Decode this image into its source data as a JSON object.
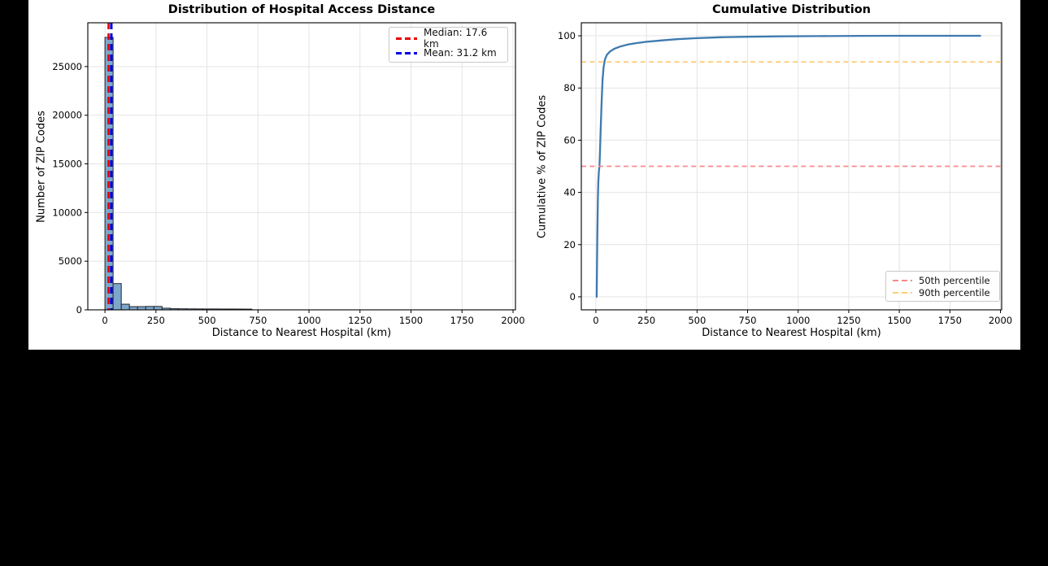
{
  "figure": {
    "background": "#ffffff",
    "page_background": "#000000",
    "axis_color": "#000000",
    "grid_color": "#e4e4e4"
  },
  "chart_data": [
    {
      "type": "bar",
      "title": "Distribution of Hospital Access Distance",
      "xlabel": "Distance to Nearest Hospital (km)",
      "ylabel": "Number of ZIP Codes",
      "xlim": [
        -84,
        2012
      ],
      "ylim": [
        0,
        29500
      ],
      "xticks": [
        0,
        250,
        500,
        750,
        1000,
        1250,
        1500,
        1750,
        2000
      ],
      "yticks": [
        0,
        5000,
        10000,
        15000,
        20000,
        25000
      ],
      "grid": true,
      "bin_start": 0,
      "bin_width": 40,
      "values": [
        28000,
        2700,
        580,
        330,
        330,
        350,
        350,
        170,
        120,
        110,
        100,
        95,
        90,
        90,
        85,
        85,
        80,
        75
      ],
      "bar_color": "#7da7ca",
      "bar_edge": "#26262e",
      "annotations": [
        {
          "id": "median-line",
          "label": "Median: 17.6 km",
          "value": 17.6,
          "orient": "v",
          "color": "#e60000",
          "width": 2.6
        },
        {
          "id": "mean-line",
          "label": "Mean: 31.2 km",
          "value": 31.2,
          "orient": "v",
          "color": "#0000dd",
          "width": 3.1
        }
      ],
      "legend_position": "top-right"
    },
    {
      "type": "line",
      "title": "Cumulative Distribution",
      "xlabel": "Distance to Nearest Hospital (km)",
      "ylabel": "Cumulative % of ZIP Codes",
      "xlim": [
        -72,
        2006
      ],
      "ylim": [
        -5,
        105
      ],
      "xticks": [
        0,
        250,
        500,
        750,
        1000,
        1250,
        1500,
        1750,
        2000
      ],
      "yticks": [
        0,
        20,
        40,
        60,
        80,
        100
      ],
      "grid": true,
      "line_color": "#3d7ab0",
      "line_width": 2.3,
      "points": [
        [
          4,
          0
        ],
        [
          6,
          15
        ],
        [
          8,
          28
        ],
        [
          10,
          38
        ],
        [
          12,
          44
        ],
        [
          15,
          48
        ],
        [
          17.6,
          50
        ],
        [
          20,
          55
        ],
        [
          24,
          65
        ],
        [
          28,
          74
        ],
        [
          33,
          83
        ],
        [
          38,
          88
        ],
        [
          45,
          91
        ],
        [
          55,
          92.8
        ],
        [
          70,
          94
        ],
        [
          90,
          95
        ],
        [
          120,
          95.9
        ],
        [
          160,
          96.7
        ],
        [
          200,
          97.2
        ],
        [
          250,
          97.7
        ],
        [
          320,
          98.2
        ],
        [
          400,
          98.7
        ],
        [
          500,
          99.1
        ],
        [
          620,
          99.45
        ],
        [
          750,
          99.65
        ],
        [
          900,
          99.8
        ],
        [
          1100,
          99.9
        ],
        [
          1300,
          99.97
        ],
        [
          1500,
          100
        ],
        [
          1700,
          100
        ],
        [
          1900,
          100
        ]
      ],
      "annotations": [
        {
          "id": "percentile-50-line",
          "label": "50th percentile",
          "value": 50,
          "orient": "h",
          "color": "#f88a8a",
          "width": 1.8
        },
        {
          "id": "percentile-90-line",
          "label": "90th percentile",
          "value": 90,
          "orient": "h",
          "color": "#ffcc77",
          "width": 1.8
        }
      ],
      "legend_position": "bottom-right"
    }
  ]
}
